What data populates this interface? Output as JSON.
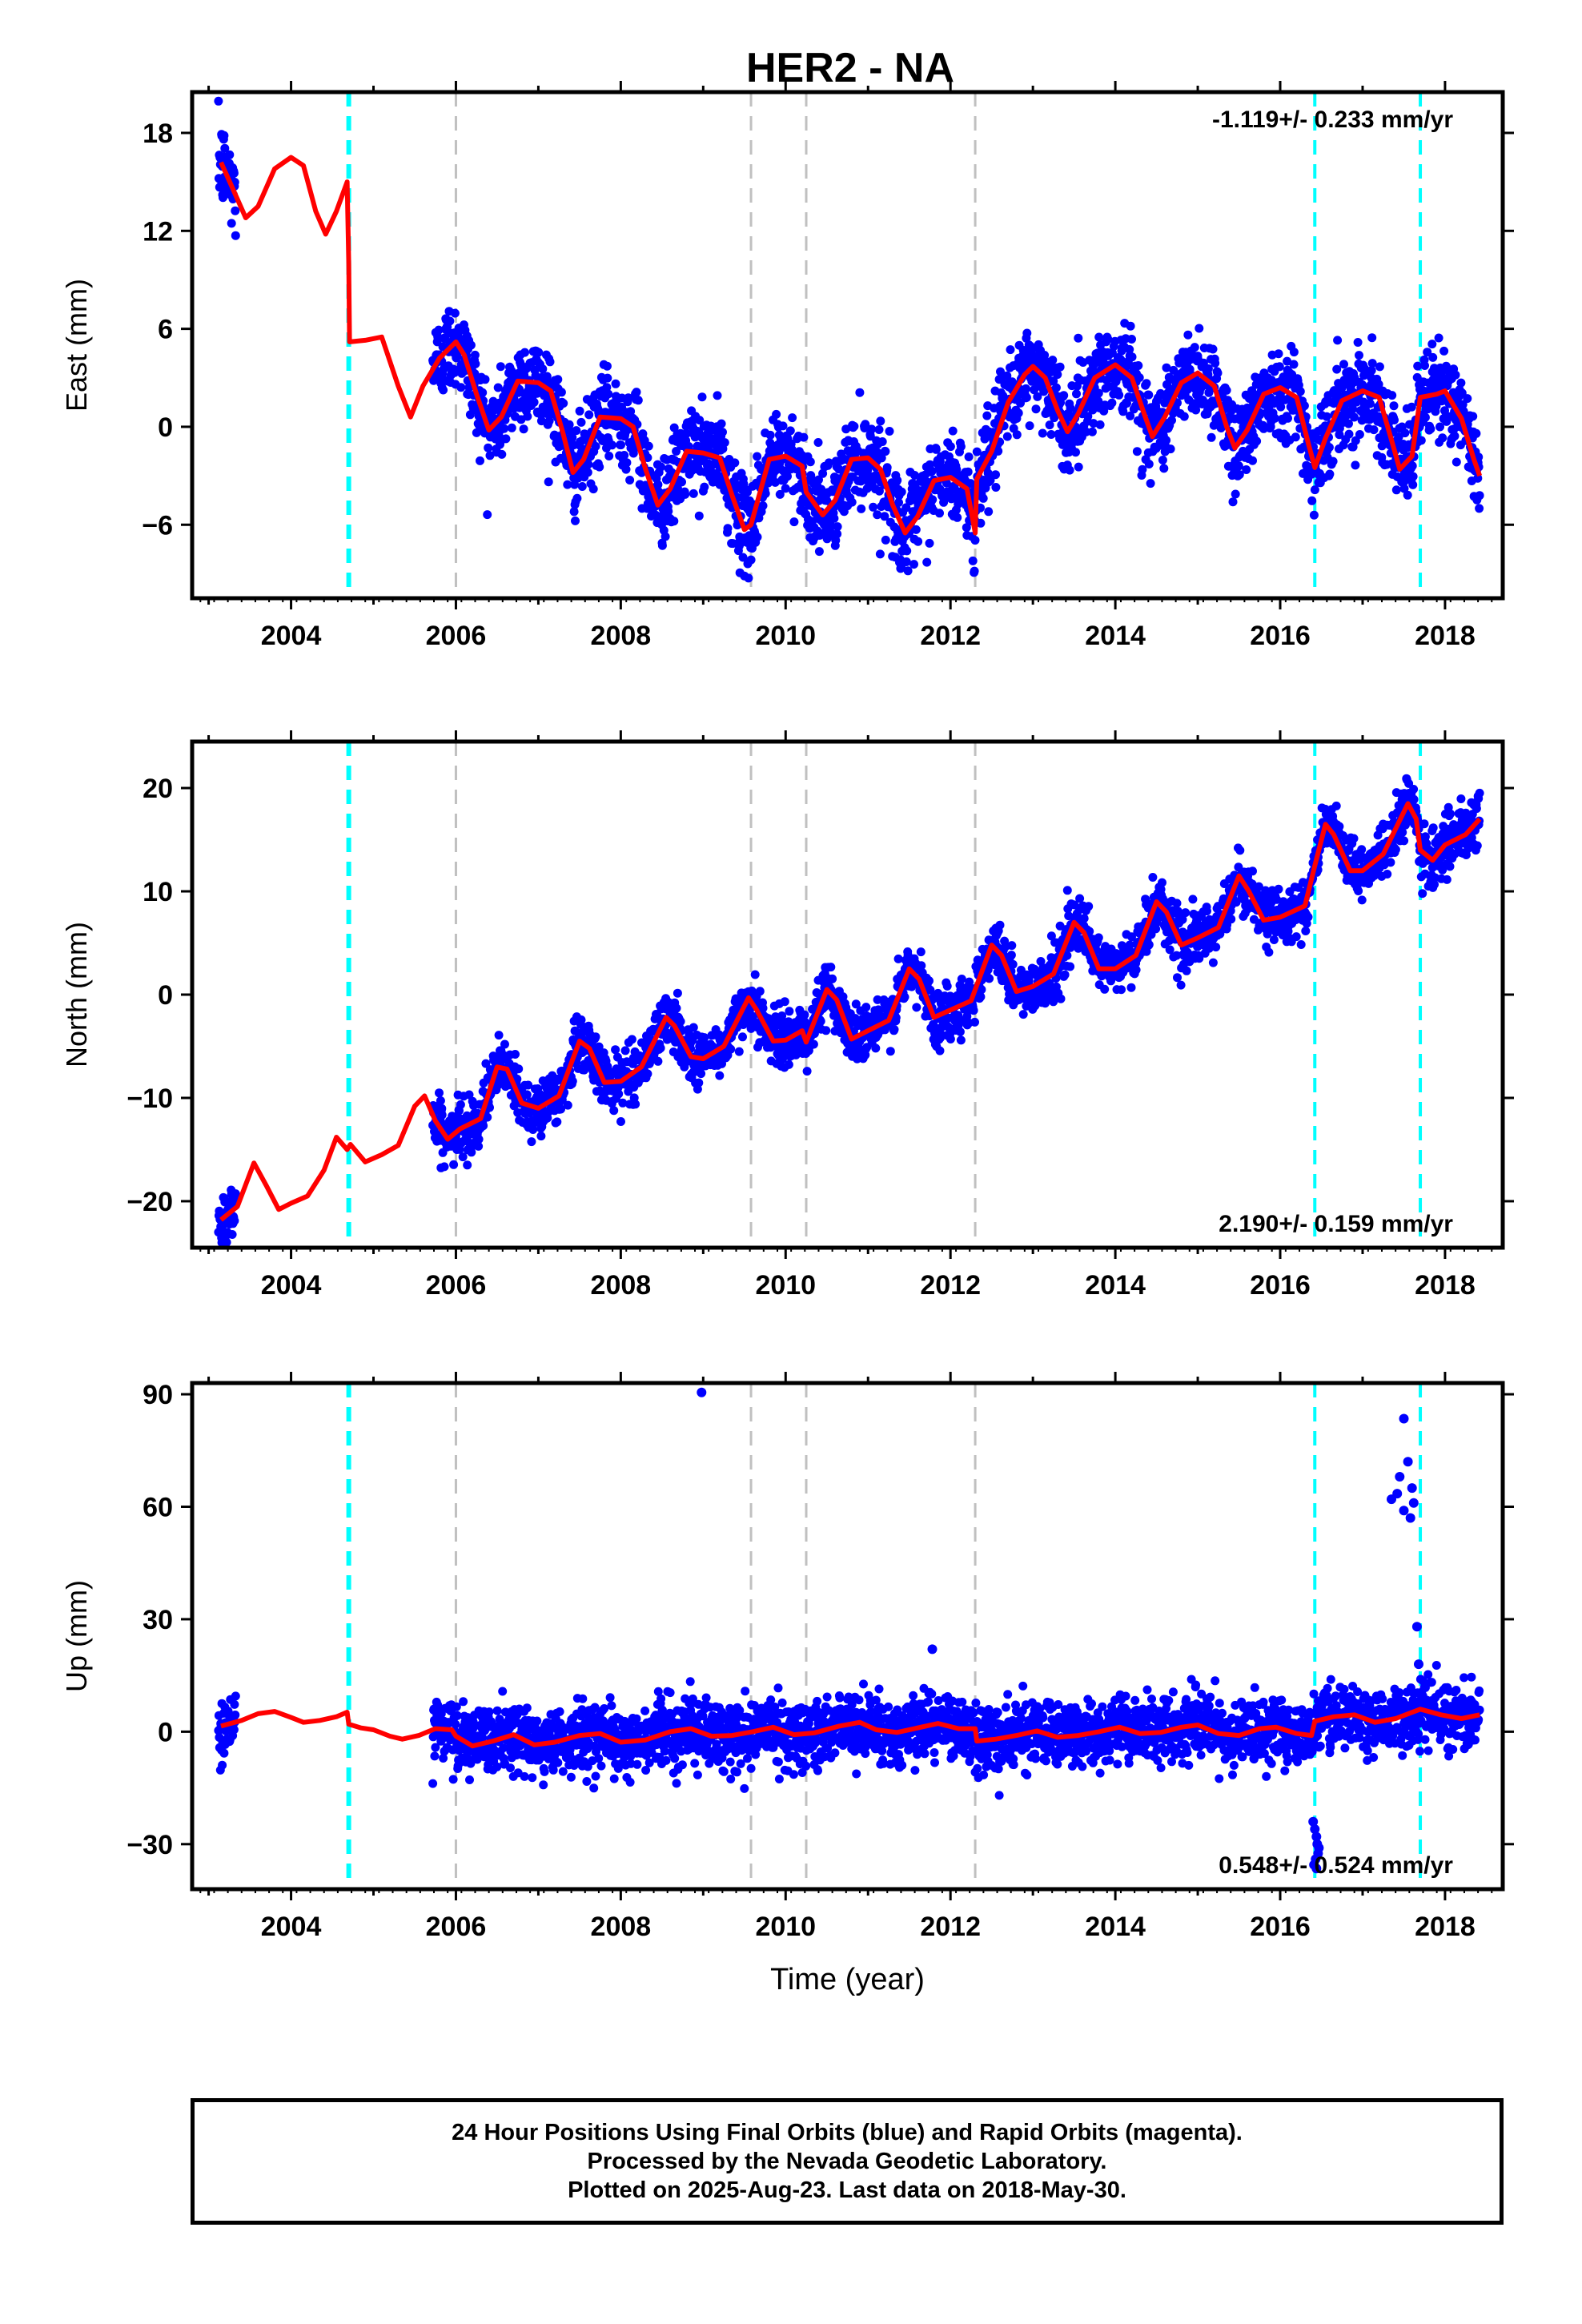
{
  "page": {
    "title": "HER2 - NA"
  },
  "colors": {
    "final_orbits": "#0000ff",
    "rapid_orbits": "#ff00ff",
    "model_fit": "#ff0000",
    "equipment_change": "#00ffff",
    "other_event": "#c0c0c0"
  },
  "chart_data": [
    {
      "type": "scatter",
      "name": "east",
      "ylabel": "East (mm)",
      "xlabel": "",
      "xlim": [
        2002.8,
        2018.7
      ],
      "ylim": [
        -10.5,
        20.5
      ],
      "xticks": [
        2004,
        2006,
        2008,
        2010,
        2012,
        2014,
        2016,
        2018
      ],
      "yticks": [
        -6,
        0,
        6,
        12,
        18
      ],
      "rate_label": "-1.119+/- 0.233 mm/yr",
      "rate_position": "top-right",
      "events_cyan": [
        2004.7,
        2016.42,
        2017.7
      ],
      "events_gray": [
        2006.0,
        2009.58,
        2010.25,
        2012.3
      ],
      "model": [
        [
          2003.15,
          16.2
        ],
        [
          2003.3,
          14.5
        ],
        [
          2003.45,
          12.8
        ],
        [
          2003.6,
          13.5
        ],
        [
          2003.8,
          15.8
        ],
        [
          2004.0,
          16.5
        ],
        [
          2004.15,
          16.0
        ],
        [
          2004.3,
          13.2
        ],
        [
          2004.42,
          11.8
        ],
        [
          2004.55,
          13.2
        ],
        [
          2004.68,
          15.0
        ],
        [
          2004.7,
          10.0
        ],
        [
          2004.71,
          5.2
        ],
        [
          2004.9,
          5.3
        ],
        [
          2005.1,
          5.5
        ],
        [
          2005.3,
          2.5
        ],
        [
          2005.45,
          0.6
        ],
        [
          2005.6,
          2.5
        ],
        [
          2005.8,
          4.2
        ],
        [
          2006.0,
          5.2
        ],
        [
          2006.1,
          4.4
        ],
        [
          2006.25,
          2.0
        ],
        [
          2006.4,
          -0.2
        ],
        [
          2006.55,
          0.6
        ],
        [
          2006.75,
          2.8
        ],
        [
          2007.0,
          2.7
        ],
        [
          2007.15,
          2.2
        ],
        [
          2007.3,
          -0.4
        ],
        [
          2007.42,
          -2.8
        ],
        [
          2007.55,
          -2.0
        ],
        [
          2007.75,
          0.6
        ],
        [
          2008.0,
          0.5
        ],
        [
          2008.15,
          0.0
        ],
        [
          2008.3,
          -2.6
        ],
        [
          2008.45,
          -4.8
        ],
        [
          2008.6,
          -3.8
        ],
        [
          2008.8,
          -1.5
        ],
        [
          2009.0,
          -1.6
        ],
        [
          2009.2,
          -1.9
        ],
        [
          2009.35,
          -4.2
        ],
        [
          2009.5,
          -6.3
        ],
        [
          2009.58,
          -6.0
        ],
        [
          2009.8,
          -2.0
        ],
        [
          2010.0,
          -1.8
        ],
        [
          2010.2,
          -2.4
        ],
        [
          2010.25,
          -4.0
        ],
        [
          2010.45,
          -5.4
        ],
        [
          2010.6,
          -4.5
        ],
        [
          2010.8,
          -2.0
        ],
        [
          2011.0,
          -1.9
        ],
        [
          2011.15,
          -2.6
        ],
        [
          2011.3,
          -4.8
        ],
        [
          2011.45,
          -6.5
        ],
        [
          2011.6,
          -5.5
        ],
        [
          2011.8,
          -3.3
        ],
        [
          2012.0,
          -3.1
        ],
        [
          2012.2,
          -3.8
        ],
        [
          2012.3,
          -6.5
        ],
        [
          2012.32,
          -3.2
        ],
        [
          2012.5,
          -1.5
        ],
        [
          2012.7,
          1.5
        ],
        [
          2012.9,
          3.2
        ],
        [
          2013.0,
          3.7
        ],
        [
          2013.15,
          3.0
        ],
        [
          2013.3,
          1.0
        ],
        [
          2013.42,
          -0.3
        ],
        [
          2013.55,
          0.8
        ],
        [
          2013.75,
          3.0
        ],
        [
          2014.0,
          3.8
        ],
        [
          2014.2,
          3.0
        ],
        [
          2014.35,
          0.8
        ],
        [
          2014.45,
          -0.6
        ],
        [
          2014.6,
          0.6
        ],
        [
          2014.8,
          2.7
        ],
        [
          2015.0,
          3.3
        ],
        [
          2015.2,
          2.5
        ],
        [
          2015.35,
          0.0
        ],
        [
          2015.45,
          -1.3
        ],
        [
          2015.6,
          -0.2
        ],
        [
          2015.8,
          2.0
        ],
        [
          2016.0,
          2.4
        ],
        [
          2016.2,
          1.8
        ],
        [
          2016.35,
          -1.2
        ],
        [
          2016.42,
          -2.5
        ],
        [
          2016.55,
          -0.7
        ],
        [
          2016.75,
          1.6
        ],
        [
          2017.0,
          2.2
        ],
        [
          2017.2,
          1.8
        ],
        [
          2017.35,
          -0.8
        ],
        [
          2017.45,
          -2.6
        ],
        [
          2017.6,
          -1.8
        ],
        [
          2017.7,
          1.8
        ],
        [
          2017.9,
          2.0
        ],
        [
          2018.0,
          2.2
        ],
        [
          2018.2,
          0.5
        ],
        [
          2018.35,
          -2.0
        ],
        [
          2018.42,
          -3.0
        ]
      ]
    },
    {
      "type": "scatter",
      "name": "north",
      "ylabel": "North (mm)",
      "xlabel": "",
      "xlim": [
        2002.8,
        2018.7
      ],
      "ylim": [
        -24.5,
        24.5
      ],
      "xticks": [
        2004,
        2006,
        2008,
        2010,
        2012,
        2014,
        2016,
        2018
      ],
      "yticks": [
        -20,
        -10,
        0,
        10,
        20
      ],
      "rate_label": "2.190+/- 0.159 mm/yr",
      "rate_position": "bottom-right",
      "events_cyan": [
        2004.7,
        2016.42,
        2017.7
      ],
      "events_gray": [
        2006.0,
        2009.58,
        2010.25,
        2012.3
      ],
      "model": [
        [
          2003.15,
          -21.8
        ],
        [
          2003.35,
          -20.5
        ],
        [
          2003.55,
          -16.3
        ],
        [
          2003.7,
          -18.5
        ],
        [
          2003.85,
          -20.8
        ],
        [
          2004.0,
          -20.2
        ],
        [
          2004.2,
          -19.5
        ],
        [
          2004.4,
          -17.0
        ],
        [
          2004.55,
          -13.8
        ],
        [
          2004.68,
          -15.0
        ],
        [
          2004.72,
          -14.5
        ],
        [
          2004.9,
          -16.2
        ],
        [
          2005.1,
          -15.5
        ],
        [
          2005.3,
          -14.6
        ],
        [
          2005.5,
          -10.8
        ],
        [
          2005.62,
          -9.8
        ],
        [
          2005.75,
          -12.2
        ],
        [
          2005.9,
          -14.0
        ],
        [
          2006.05,
          -13.0
        ],
        [
          2006.3,
          -12.0
        ],
        [
          2006.5,
          -7.0
        ],
        [
          2006.62,
          -7.2
        ],
        [
          2006.8,
          -10.5
        ],
        [
          2007.0,
          -11.0
        ],
        [
          2007.25,
          -9.8
        ],
        [
          2007.5,
          -4.5
        ],
        [
          2007.62,
          -5.2
        ],
        [
          2007.8,
          -8.5
        ],
        [
          2008.0,
          -8.4
        ],
        [
          2008.25,
          -7.0
        ],
        [
          2008.55,
          -2.2
        ],
        [
          2008.65,
          -3.0
        ],
        [
          2008.85,
          -6.0
        ],
        [
          2009.0,
          -6.2
        ],
        [
          2009.25,
          -5.0
        ],
        [
          2009.55,
          -0.3
        ],
        [
          2009.65,
          -1.5
        ],
        [
          2009.85,
          -4.5
        ],
        [
          2010.0,
          -4.4
        ],
        [
          2010.2,
          -3.5
        ],
        [
          2010.25,
          -4.6
        ],
        [
          2010.5,
          0.5
        ],
        [
          2010.62,
          -0.5
        ],
        [
          2010.8,
          -4.3
        ],
        [
          2011.0,
          -3.5
        ],
        [
          2011.25,
          -2.5
        ],
        [
          2011.5,
          2.5
        ],
        [
          2011.62,
          1.5
        ],
        [
          2011.8,
          -2.2
        ],
        [
          2012.0,
          -1.5
        ],
        [
          2012.25,
          -0.6
        ],
        [
          2012.5,
          4.8
        ],
        [
          2012.62,
          3.8
        ],
        [
          2012.8,
          0.3
        ],
        [
          2013.0,
          0.8
        ],
        [
          2013.25,
          2.0
        ],
        [
          2013.5,
          7.0
        ],
        [
          2013.62,
          6.0
        ],
        [
          2013.8,
          2.5
        ],
        [
          2014.0,
          2.5
        ],
        [
          2014.25,
          3.8
        ],
        [
          2014.5,
          9.0
        ],
        [
          2014.62,
          8.0
        ],
        [
          2014.8,
          4.8
        ],
        [
          2015.0,
          5.5
        ],
        [
          2015.25,
          6.5
        ],
        [
          2015.5,
          11.5
        ],
        [
          2015.62,
          10.0
        ],
        [
          2015.8,
          7.2
        ],
        [
          2016.0,
          7.5
        ],
        [
          2016.3,
          8.6
        ],
        [
          2016.42,
          12.5
        ],
        [
          2016.55,
          16.5
        ],
        [
          2016.65,
          15.5
        ],
        [
          2016.85,
          12.0
        ],
        [
          2017.0,
          12.0
        ],
        [
          2017.25,
          13.6
        ],
        [
          2017.55,
          18.5
        ],
        [
          2017.65,
          17.0
        ],
        [
          2017.7,
          14.0
        ],
        [
          2017.85,
          13.0
        ],
        [
          2018.0,
          14.5
        ],
        [
          2018.25,
          15.5
        ],
        [
          2018.42,
          17.0
        ]
      ]
    },
    {
      "type": "scatter",
      "name": "up",
      "ylabel": "Up (mm)",
      "xlabel": "Time (year)",
      "xlim": [
        2002.8,
        2018.7
      ],
      "ylim": [
        -42,
        93
      ],
      "xticks": [
        2004,
        2006,
        2008,
        2010,
        2012,
        2014,
        2016,
        2018
      ],
      "yticks": [
        -30,
        0,
        30,
        60,
        90
      ],
      "rate_label": "0.548+/- 0.524 mm/yr",
      "rate_position": "bottom-right",
      "events_cyan": [
        2004.7,
        2016.42,
        2017.7
      ],
      "events_gray": [
        2006.0,
        2009.58,
        2010.25,
        2012.3
      ],
      "outliers": [
        [
          2008.98,
          90.5
        ],
        [
          2017.5,
          83.5
        ],
        [
          2017.55,
          72.0
        ],
        [
          2017.45,
          68.0
        ],
        [
          2017.35,
          62.0
        ],
        [
          2017.42,
          63.5
        ],
        [
          2017.5,
          59.0
        ],
        [
          2017.58,
          57.0
        ],
        [
          2017.62,
          61.0
        ],
        [
          2017.6,
          65.0
        ],
        [
          2017.66,
          28.0
        ],
        [
          2017.68,
          18.0
        ],
        [
          2011.78,
          22.0
        ],
        [
          2016.4,
          -24.0
        ],
        [
          2016.42,
          -26.0
        ],
        [
          2016.44,
          -28.0
        ],
        [
          2016.45,
          -30.0
        ],
        [
          2016.46,
          -32.5
        ],
        [
          2016.43,
          -34.0
        ],
        [
          2016.41,
          -35.5
        ],
        [
          2016.47,
          -31.0
        ],
        [
          2016.44,
          -36.5
        ]
      ],
      "model": [
        [
          2003.15,
          1.5
        ],
        [
          2003.4,
          3.0
        ],
        [
          2003.6,
          4.8
        ],
        [
          2003.8,
          5.4
        ],
        [
          2004.0,
          3.8
        ],
        [
          2004.15,
          2.5
        ],
        [
          2004.35,
          3.0
        ],
        [
          2004.55,
          4.0
        ],
        [
          2004.68,
          5.2
        ],
        [
          2004.7,
          2.0
        ],
        [
          2004.85,
          1.0
        ],
        [
          2005.0,
          0.5
        ],
        [
          2005.2,
          -1.2
        ],
        [
          2005.35,
          -2.0
        ],
        [
          2005.55,
          -1.0
        ],
        [
          2005.75,
          0.8
        ],
        [
          2005.95,
          0.5
        ],
        [
          2006.0,
          -1.2
        ],
        [
          2006.2,
          -3.8
        ],
        [
          2006.45,
          -2.5
        ],
        [
          2006.7,
          -0.8
        ],
        [
          2006.95,
          -3.5
        ],
        [
          2007.2,
          -2.8
        ],
        [
          2007.5,
          -1.0
        ],
        [
          2007.75,
          -0.5
        ],
        [
          2008.0,
          -2.8
        ],
        [
          2008.3,
          -2.2
        ],
        [
          2008.6,
          0.0
        ],
        [
          2008.85,
          0.8
        ],
        [
          2009.1,
          -1.2
        ],
        [
          2009.35,
          -1.0
        ],
        [
          2009.6,
          0.0
        ],
        [
          2009.85,
          1.2
        ],
        [
          2010.1,
          -0.8
        ],
        [
          2010.35,
          -0.3
        ],
        [
          2010.65,
          1.5
        ],
        [
          2010.9,
          2.5
        ],
        [
          2011.1,
          0.5
        ],
        [
          2011.35,
          -0.2
        ],
        [
          2011.6,
          1.0
        ],
        [
          2011.85,
          2.2
        ],
        [
          2012.1,
          0.8
        ],
        [
          2012.3,
          0.8
        ],
        [
          2012.32,
          -2.5
        ],
        [
          2012.55,
          -2.0
        ],
        [
          2012.8,
          -1.0
        ],
        [
          2013.05,
          0.2
        ],
        [
          2013.3,
          -1.5
        ],
        [
          2013.55,
          -1.0
        ],
        [
          2013.8,
          0.0
        ],
        [
          2014.05,
          1.2
        ],
        [
          2014.3,
          -0.5
        ],
        [
          2014.55,
          -0.2
        ],
        [
          2014.8,
          1.2
        ],
        [
          2015.0,
          1.8
        ],
        [
          2015.25,
          -0.5
        ],
        [
          2015.5,
          -1.0
        ],
        [
          2015.75,
          0.8
        ],
        [
          2015.95,
          1.2
        ],
        [
          2016.2,
          -0.5
        ],
        [
          2016.38,
          -1.0
        ],
        [
          2016.42,
          2.8
        ],
        [
          2016.65,
          4.0
        ],
        [
          2016.9,
          4.5
        ],
        [
          2017.15,
          2.5
        ],
        [
          2017.4,
          3.5
        ],
        [
          2017.7,
          6.0
        ],
        [
          2017.95,
          4.5
        ],
        [
          2018.2,
          3.5
        ],
        [
          2018.42,
          4.5
        ]
      ]
    }
  ],
  "footer": {
    "line1": "24 Hour Positions Using Final Orbits (blue) and Rapid Orbits (magenta).",
    "line2": "Processed by the Nevada Geodetic Laboratory.",
    "line3": "Plotted on 2025-Aug-23. Last data on 2018-May-30."
  }
}
